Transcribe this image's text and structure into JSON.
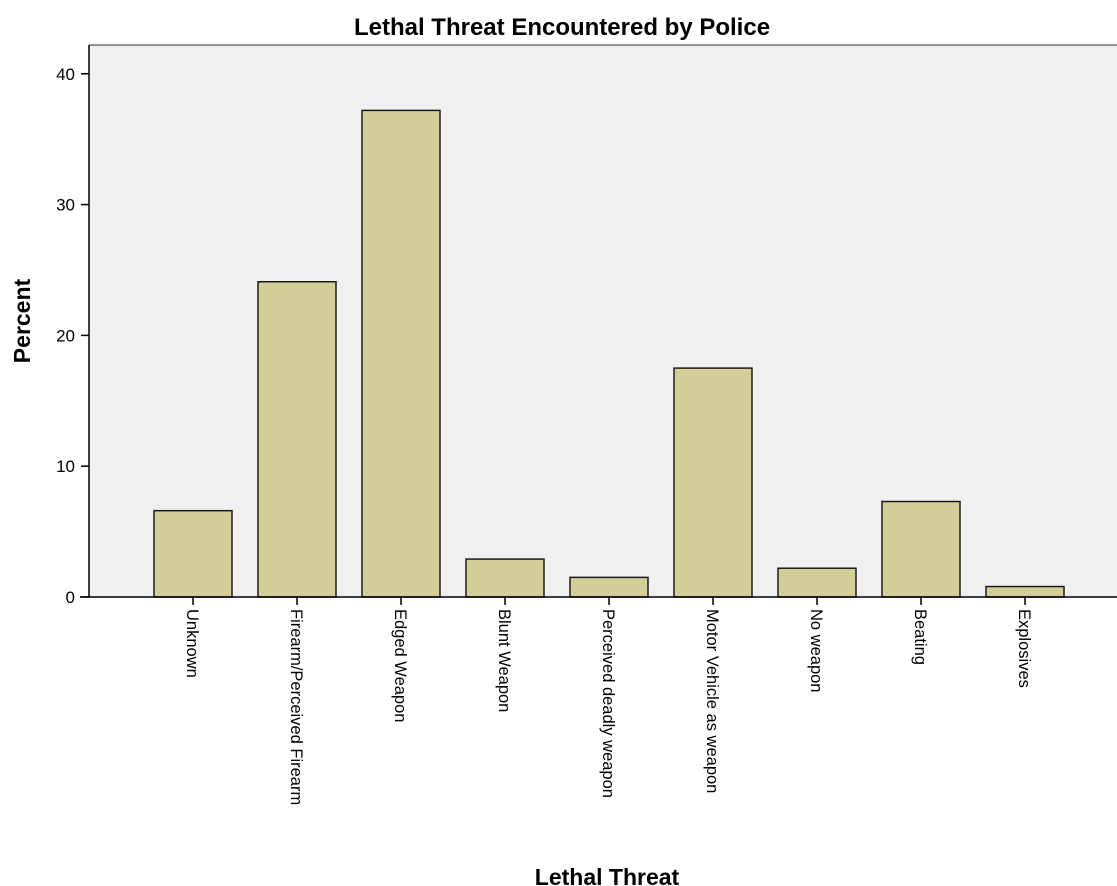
{
  "chart_data": {
    "type": "bar",
    "title": "Lethal Threat Encountered by Police",
    "xlabel": "Lethal Threat",
    "ylabel": "Percent",
    "categories": [
      "Unknown",
      "Firearm/Perceived Firearm",
      "Edged Weapon",
      "Blunt Weapon",
      "Perceived deadly weapon",
      "Motor Vehicle as weapon",
      "No weapon",
      "Beating",
      "Explosives"
    ],
    "values": [
      6.6,
      24.1,
      37.2,
      2.9,
      1.5,
      17.5,
      2.2,
      7.3,
      0.8
    ],
    "ylim": [
      0,
      42.2
    ],
    "yticks": [
      0,
      10,
      20,
      30,
      40
    ],
    "grid": false,
    "legend": "none",
    "colors": {
      "bar_fill": "#d3ce97",
      "bar_stroke": "#1a1a1a",
      "plot_background": "#f0f0f0",
      "axis": "#000000"
    }
  }
}
